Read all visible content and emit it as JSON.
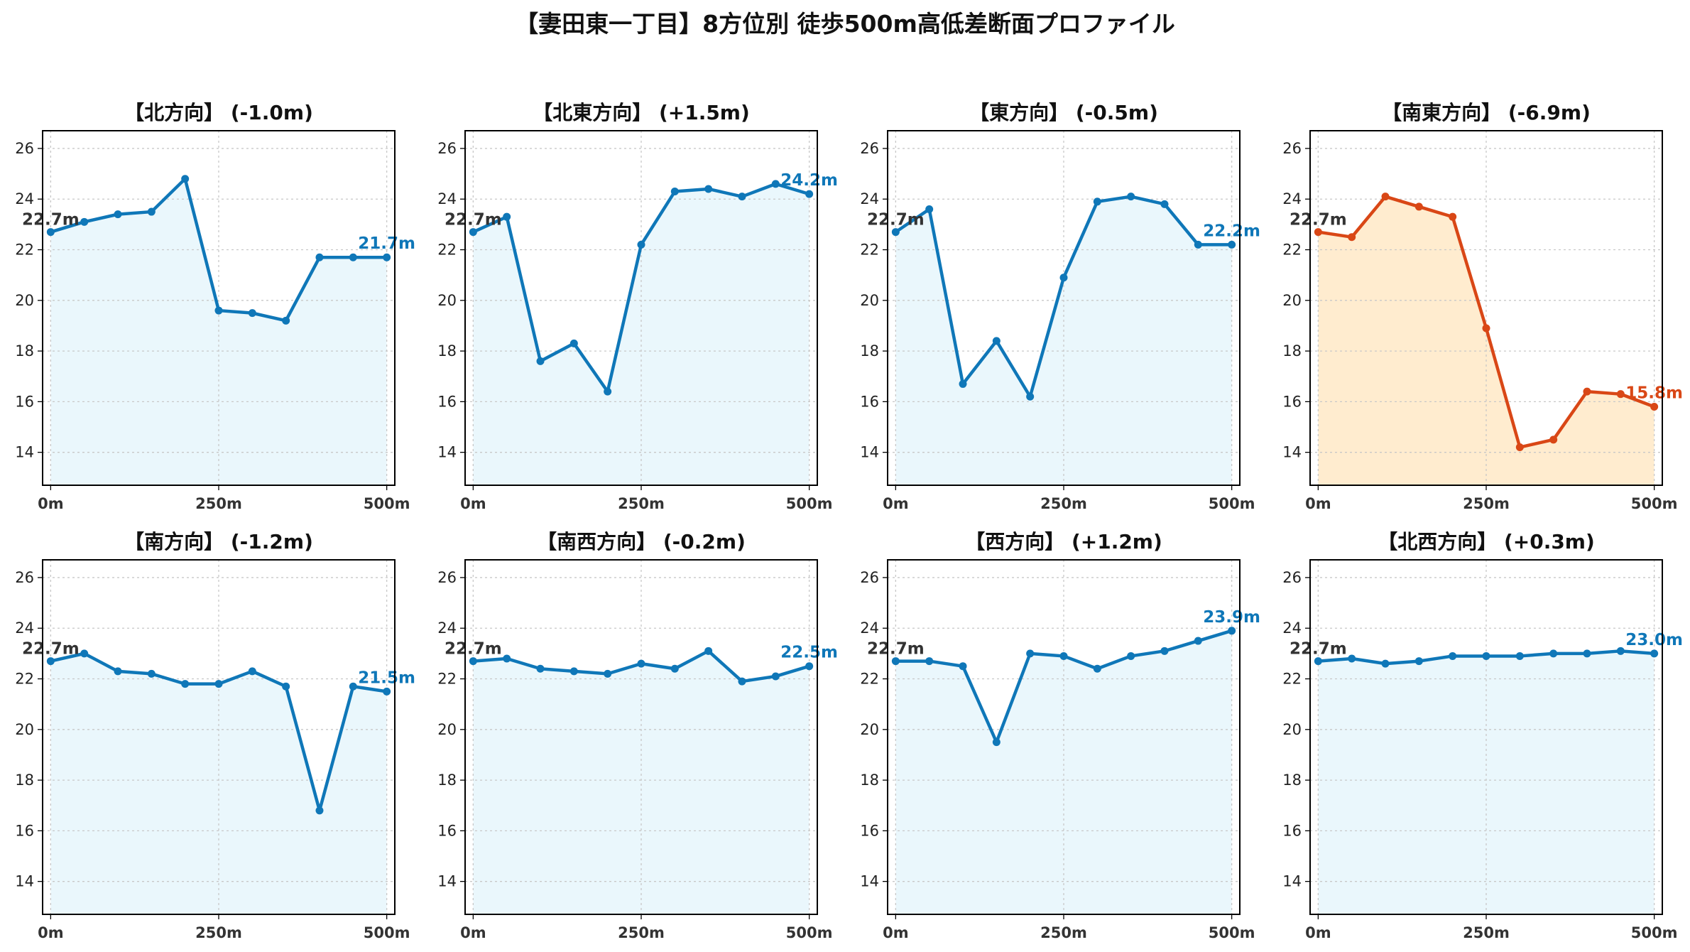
{
  "figure": {
    "title": "【妻田東一丁目】8方位別 徒歩500m高低差断面プロファイル"
  },
  "colors": {
    "normal_line": "#0f77b8",
    "normal_fill": "#eaf7fc",
    "highlight_line": "#d94716",
    "highlight_fill": "#ffeccf",
    "grid": "#c8c8c8",
    "start_label": "#333333"
  },
  "chart_data": [
    {
      "type": "area",
      "title": "【北方向】 (-1.0m)",
      "x": [
        0,
        50,
        100,
        150,
        200,
        250,
        300,
        350,
        400,
        450,
        500
      ],
      "y": [
        22.7,
        23.1,
        23.4,
        23.5,
        24.8,
        19.6,
        19.5,
        19.2,
        21.7,
        21.7,
        21.7
      ],
      "start_label": "22.7m",
      "end_label": "21.7m",
      "highlight": false,
      "xticks": [
        "0m",
        "250m",
        "500m"
      ],
      "yticks": [
        "14",
        "16",
        "18",
        "20",
        "22",
        "24",
        "26"
      ],
      "xlim": [
        -12,
        512
      ],
      "ylim": [
        12.7,
        26.7
      ],
      "grid": true
    },
    {
      "type": "area",
      "title": "【北東方向】 (+1.5m)",
      "x": [
        0,
        50,
        100,
        150,
        200,
        250,
        300,
        350,
        400,
        450,
        500
      ],
      "y": [
        22.7,
        23.3,
        17.6,
        18.3,
        16.4,
        22.2,
        24.3,
        24.4,
        24.1,
        24.6,
        24.2
      ],
      "start_label": "22.7m",
      "end_label": "24.2m",
      "highlight": false,
      "xticks": [
        "0m",
        "250m",
        "500m"
      ],
      "yticks": [
        "14",
        "16",
        "18",
        "20",
        "22",
        "24",
        "26"
      ],
      "xlim": [
        -12,
        512
      ],
      "ylim": [
        12.7,
        26.7
      ],
      "grid": true
    },
    {
      "type": "area",
      "title": "【東方向】 (-0.5m)",
      "x": [
        0,
        50,
        100,
        150,
        200,
        250,
        300,
        350,
        400,
        450,
        500
      ],
      "y": [
        22.7,
        23.6,
        16.7,
        18.4,
        16.2,
        20.9,
        23.9,
        24.1,
        23.8,
        22.2,
        22.2
      ],
      "start_label": "22.7m",
      "end_label": "22.2m",
      "highlight": false,
      "xticks": [
        "0m",
        "250m",
        "500m"
      ],
      "yticks": [
        "14",
        "16",
        "18",
        "20",
        "22",
        "24",
        "26"
      ],
      "xlim": [
        -12,
        512
      ],
      "ylim": [
        12.7,
        26.7
      ],
      "grid": true
    },
    {
      "type": "area",
      "title": "【南東方向】 (-6.9m)",
      "x": [
        0,
        50,
        100,
        150,
        200,
        250,
        300,
        350,
        400,
        450,
        500
      ],
      "y": [
        22.7,
        22.5,
        24.1,
        23.7,
        23.3,
        18.9,
        14.2,
        14.5,
        16.4,
        16.3,
        15.8
      ],
      "start_label": "22.7m",
      "end_label": "15.8m",
      "highlight": true,
      "xticks": [
        "0m",
        "250m",
        "500m"
      ],
      "yticks": [
        "14",
        "16",
        "18",
        "20",
        "22",
        "24",
        "26"
      ],
      "xlim": [
        -12,
        512
      ],
      "ylim": [
        12.7,
        26.7
      ],
      "grid": true
    },
    {
      "type": "area",
      "title": "【南方向】 (-1.2m)",
      "x": [
        0,
        50,
        100,
        150,
        200,
        250,
        300,
        350,
        400,
        450,
        500
      ],
      "y": [
        22.7,
        23.0,
        22.3,
        22.2,
        21.8,
        21.8,
        22.3,
        21.7,
        16.8,
        21.7,
        21.5
      ],
      "start_label": "22.7m",
      "end_label": "21.5m",
      "highlight": false,
      "xticks": [
        "0m",
        "250m",
        "500m"
      ],
      "yticks": [
        "14",
        "16",
        "18",
        "20",
        "22",
        "24",
        "26"
      ],
      "xlim": [
        -12,
        512
      ],
      "ylim": [
        12.7,
        26.7
      ],
      "grid": true
    },
    {
      "type": "area",
      "title": "【南西方向】 (-0.2m)",
      "x": [
        0,
        50,
        100,
        150,
        200,
        250,
        300,
        350,
        400,
        450,
        500
      ],
      "y": [
        22.7,
        22.8,
        22.4,
        22.3,
        22.2,
        22.6,
        22.4,
        23.1,
        21.9,
        22.1,
        22.5
      ],
      "start_label": "22.7m",
      "end_label": "22.5m",
      "highlight": false,
      "xticks": [
        "0m",
        "250m",
        "500m"
      ],
      "yticks": [
        "14",
        "16",
        "18",
        "20",
        "22",
        "24",
        "26"
      ],
      "xlim": [
        -12,
        512
      ],
      "ylim": [
        12.7,
        26.7
      ],
      "grid": true
    },
    {
      "type": "area",
      "title": "【西方向】 (+1.2m)",
      "x": [
        0,
        50,
        100,
        150,
        200,
        250,
        300,
        350,
        400,
        450,
        500
      ],
      "y": [
        22.7,
        22.7,
        22.5,
        19.5,
        23.0,
        22.9,
        22.4,
        22.9,
        23.1,
        23.5,
        23.9
      ],
      "start_label": "22.7m",
      "end_label": "23.9m",
      "highlight": false,
      "xticks": [
        "0m",
        "250m",
        "500m"
      ],
      "yticks": [
        "14",
        "16",
        "18",
        "20",
        "22",
        "24",
        "26"
      ],
      "xlim": [
        -12,
        512
      ],
      "ylim": [
        12.7,
        26.7
      ],
      "grid": true
    },
    {
      "type": "area",
      "title": "【北西方向】 (+0.3m)",
      "x": [
        0,
        50,
        100,
        150,
        200,
        250,
        300,
        350,
        400,
        450,
        500
      ],
      "y": [
        22.7,
        22.8,
        22.6,
        22.7,
        22.9,
        22.9,
        22.9,
        23.0,
        23.0,
        23.1,
        23.0
      ],
      "start_label": "22.7m",
      "end_label": "23.0m",
      "highlight": false,
      "xticks": [
        "0m",
        "250m",
        "500m"
      ],
      "yticks": [
        "14",
        "16",
        "18",
        "20",
        "22",
        "24",
        "26"
      ],
      "xlim": [
        -12,
        512
      ],
      "ylim": [
        12.7,
        26.7
      ],
      "grid": true
    }
  ]
}
